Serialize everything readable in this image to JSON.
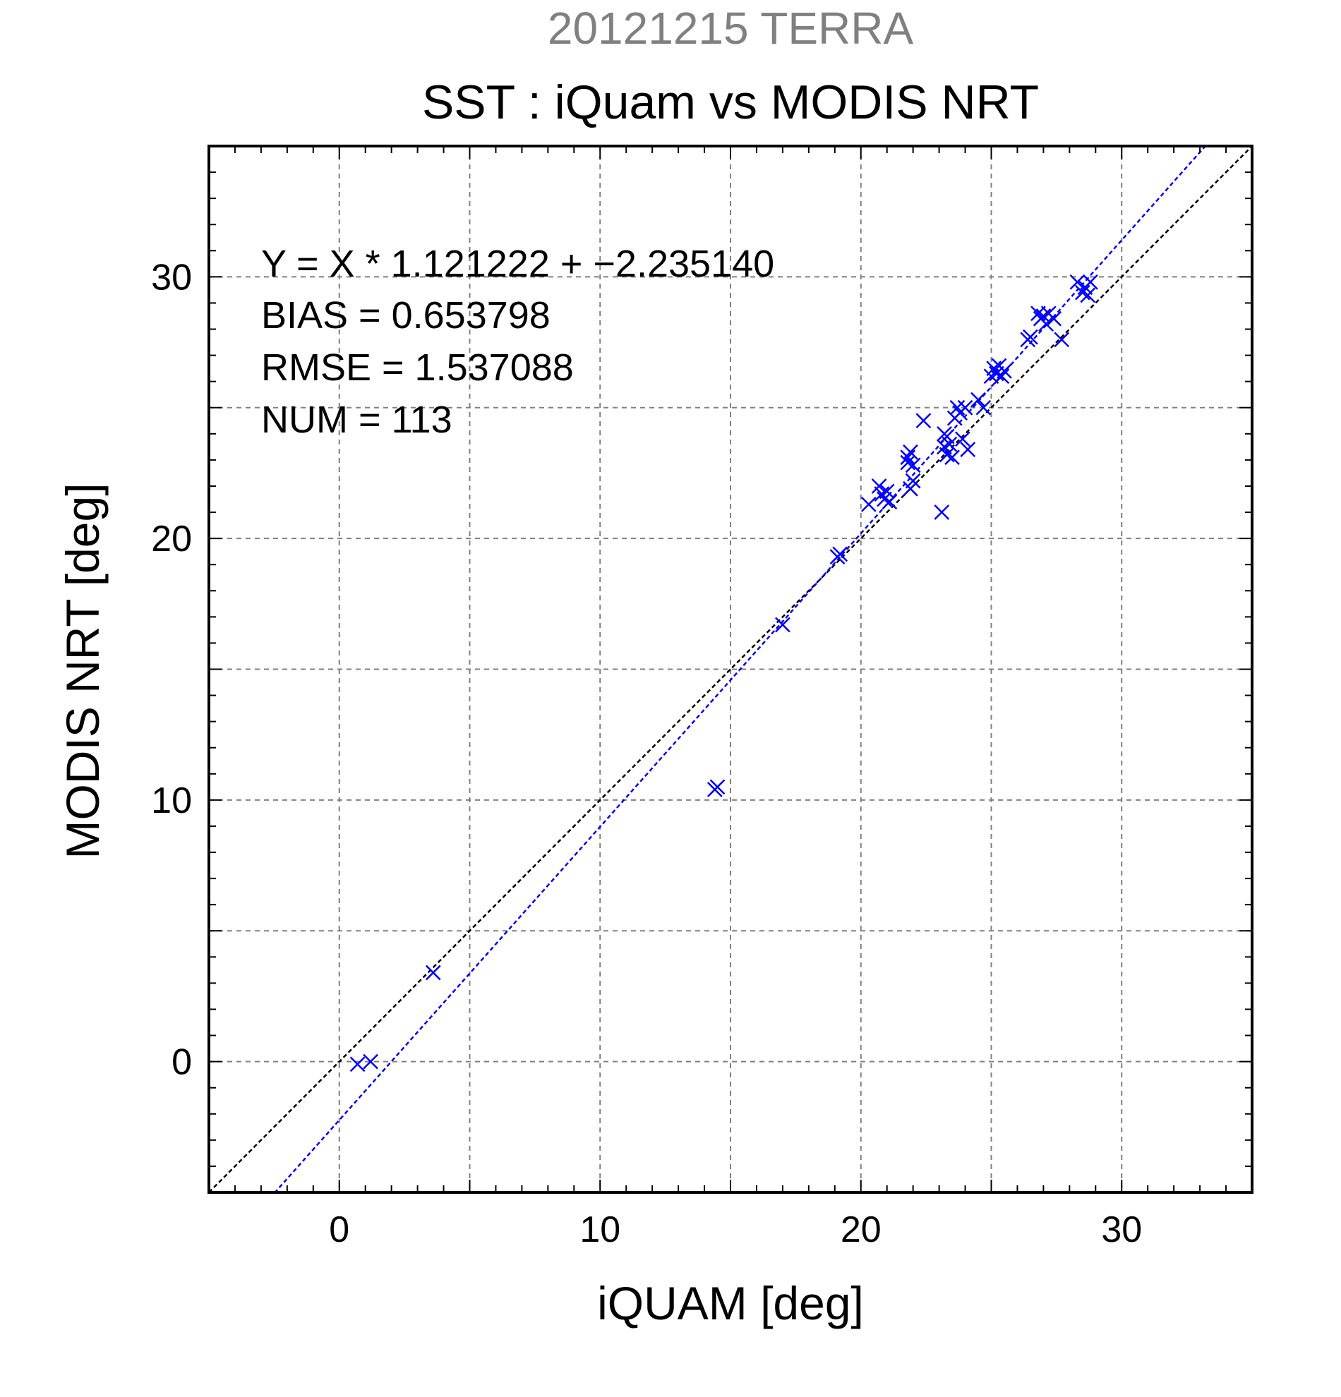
{
  "chart_data": {
    "type": "scatter",
    "title": "SST : iQuam vs MODIS NRT",
    "supertitle": "20121215 TERRA",
    "xlabel": "iQUAM [deg]",
    "ylabel": "MODIS NRT [deg]",
    "xlim": [
      -5,
      35
    ],
    "ylim": [
      -5,
      35
    ],
    "x_ticks": [
      0,
      10,
      20,
      30
    ],
    "y_ticks": [
      0,
      10,
      20,
      30
    ],
    "grid": true,
    "annotations": [
      "Y = X * 1.121222 + −2.235140",
      "BIAS = 0.653798",
      "RMSE = 1.537088",
      "NUM = 113"
    ],
    "fit": {
      "slope": 1.121222,
      "intercept": -2.23514
    },
    "reference_line": "y = x",
    "colors": {
      "points": "#0000ff",
      "fit_line": "#0000ff",
      "reference_line": "#000000",
      "supertitle": "#808080",
      "grid": "#808080"
    },
    "series": [
      {
        "x": [
          0.7,
          1.2,
          3.6,
          14.4,
          14.5,
          17.0,
          19.1,
          19.2,
          20.3,
          20.7,
          20.8,
          20.9,
          21.0,
          21.1,
          21.8,
          21.8,
          21.9,
          21.9,
          22.0,
          22.0,
          22.4,
          23.1,
          23.2,
          23.2,
          23.3,
          23.3,
          23.4,
          23.5,
          23.6,
          23.7,
          23.8,
          23.9,
          24.0,
          24.1,
          24.5,
          24.7,
          25.0,
          25.1,
          25.2,
          25.3,
          25.4,
          25.5,
          26.4,
          26.5,
          26.8,
          26.9,
          27.0,
          27.1,
          27.2,
          27.4,
          27.7,
          28.3,
          28.5,
          28.6,
          28.7,
          28.8
        ],
        "y": [
          -0.1,
          0.0,
          3.4,
          10.4,
          10.5,
          16.7,
          19.3,
          19.4,
          21.3,
          22.0,
          21.7,
          21.5,
          21.8,
          21.4,
          23.1,
          22.9,
          23.3,
          21.9,
          22.2,
          22.8,
          24.5,
          21.0,
          24.0,
          23.5,
          23.9,
          23.2,
          23.6,
          23.1,
          24.6,
          25.0,
          24.8,
          23.8,
          25.0,
          23.4,
          25.3,
          25.0,
          26.2,
          26.5,
          26.3,
          26.6,
          26.2,
          26.4,
          27.6,
          27.7,
          28.6,
          28.4,
          28.5,
          28.2,
          28.6,
          28.4,
          27.6,
          29.8,
          29.4,
          29.6,
          29.3,
          29.8
        ]
      }
    ]
  }
}
